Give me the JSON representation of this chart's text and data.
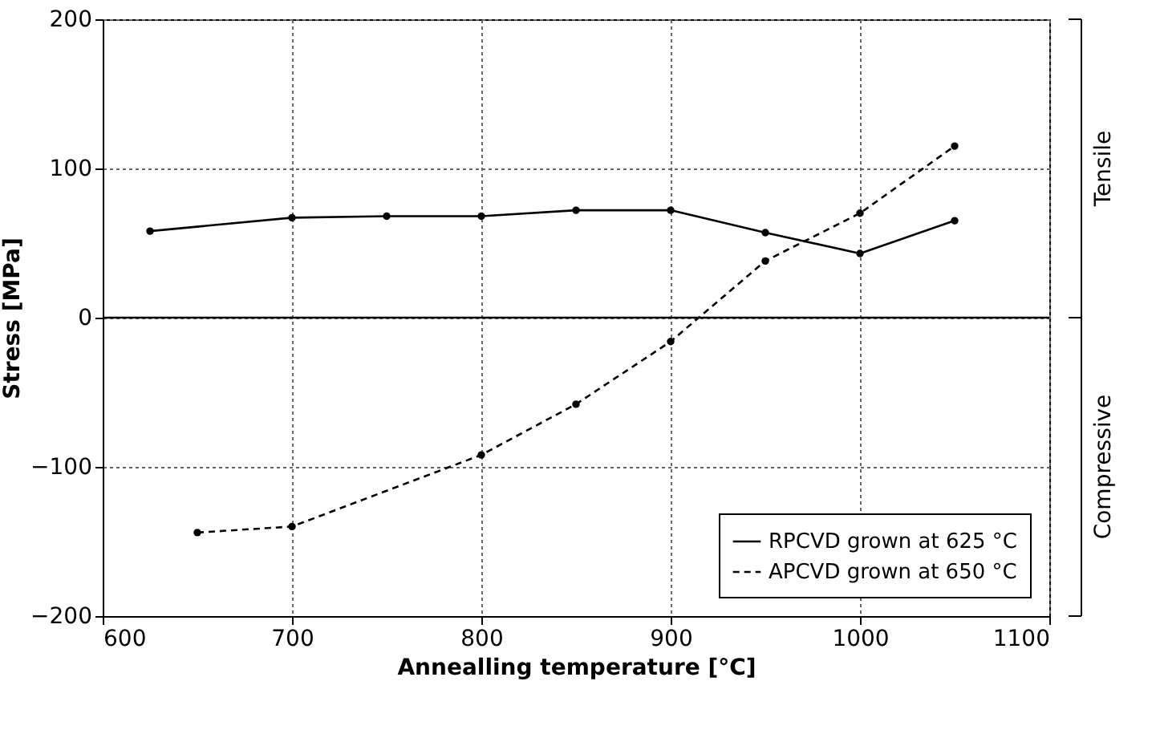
{
  "chart_data": {
    "type": "line",
    "xlabel": "Annealling temperature [°C]",
    "ylabel": "Stress [MPa]",
    "xlim": [
      600,
      1100
    ],
    "xticks": [
      600,
      700,
      800,
      900,
      1000,
      1100
    ],
    "ylim": [
      -200,
      200
    ],
    "yticks": [
      -200,
      -100,
      0,
      100,
      200
    ],
    "grid": true,
    "legend": "bottom right",
    "marker": "circle",
    "series": [
      {
        "name": "RPCVD grown at 625 °C",
        "color": "#000000",
        "line_style": "solid",
        "x": [
          625,
          700,
          750,
          800,
          850,
          900,
          950,
          1000,
          1050
        ],
        "values": [
          58,
          67,
          68,
          68,
          72,
          72,
          57,
          43,
          65
        ]
      },
      {
        "name": "APCVD grown at 650 °C",
        "color": "#000000",
        "line_style": "dashed",
        "x": [
          650,
          700,
          800,
          850,
          900,
          950,
          1000,
          1050
        ],
        "values": [
          -144,
          -140,
          -92,
          -58,
          -16,
          38,
          70,
          115
        ]
      }
    ],
    "ref_lines": [
      {
        "axis": "y",
        "value": 0,
        "color": "#000000"
      }
    ],
    "annotations": [
      "Tensile",
      "Compressive"
    ]
  }
}
